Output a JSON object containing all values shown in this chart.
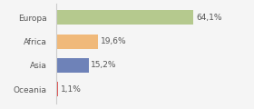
{
  "categories": [
    "Europa",
    "Africa",
    "Asia",
    "Oceania"
  ],
  "values": [
    64.1,
    19.6,
    15.2,
    1.1
  ],
  "labels": [
    "64,1%",
    "19,6%",
    "15,2%",
    "1,1%"
  ],
  "bar_colors": [
    "#b5c98e",
    "#f0b97a",
    "#6e82b8",
    "#e05555"
  ],
  "background_color": "#f5f5f5",
  "xlim": [
    0,
    90
  ],
  "bar_height": 0.6,
  "label_fontsize": 6.5,
  "tick_fontsize": 6.5
}
